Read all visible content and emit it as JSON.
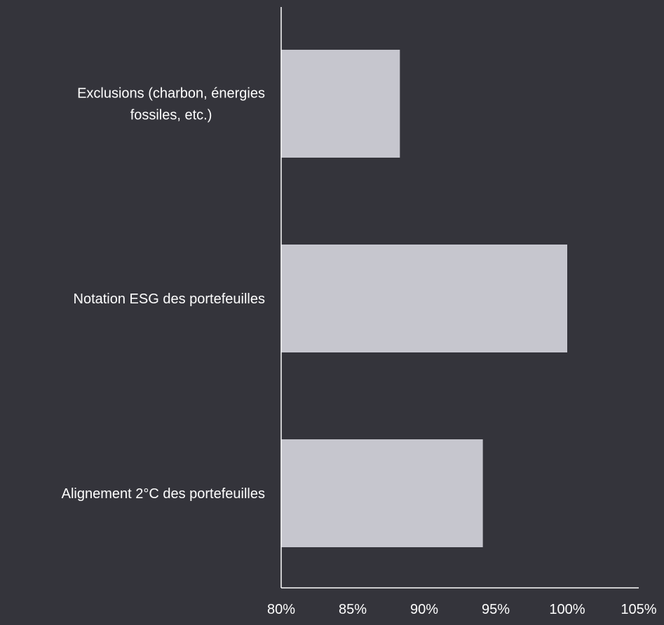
{
  "colors": {
    "background": "#34343b",
    "bar": "#c6c6ce",
    "axis": "#ffffff",
    "text": "#ffffff"
  },
  "chart_data": {
    "type": "bar",
    "orientation": "horizontal",
    "categories": [
      "Exclusions (charbon, énergies fossiles, etc.)",
      "Notation ESG des portefeuilles",
      "Alignement 2°C des portefeuilles"
    ],
    "category_lines": [
      [
        "Exclusions (charbon, énergies",
        "fossiles, etc.)"
      ],
      [
        "Notation ESG des portefeuilles"
      ],
      [
        "Alignement 2°C des portefeuilles"
      ]
    ],
    "values": [
      88.3,
      100.0,
      94.1
    ],
    "xlim": [
      80,
      105
    ],
    "x_ticks": [
      80,
      85,
      90,
      95,
      100,
      105
    ],
    "x_tick_labels": [
      "80%",
      "85%",
      "90%",
      "95%",
      "100%",
      "105%"
    ],
    "grid": false,
    "legend": "none"
  }
}
